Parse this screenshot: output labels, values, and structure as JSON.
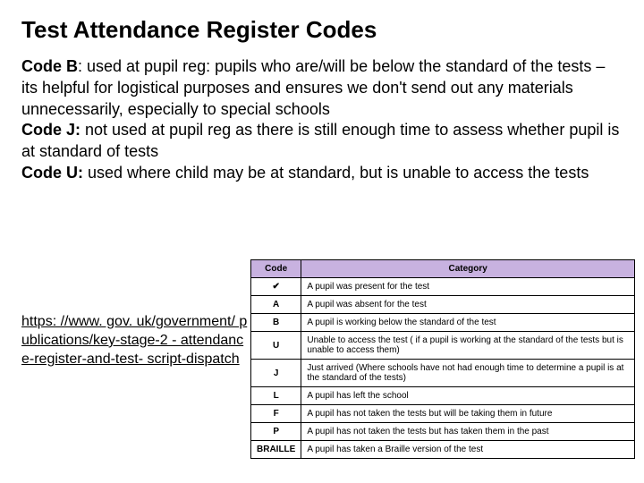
{
  "title": "Test Attendance Register Codes",
  "paragraphs": {
    "b_label": "Code B",
    "b_text": ": used at pupil reg: pupils who are/will be below the standard of the tests – its helpful for logistical purposes and ensures we don't send out any materials unnecessarily, especially to special schools",
    "j_label": " Code J:",
    "j_text": " not used at pupil reg as there is still enough time to assess whether pupil is at standard of tests",
    "u_label": " Code U:",
    "u_text": " used where child may be at standard, but is unable to access the tests"
  },
  "link_text": "https: //www. gov. uk/government/ publications/key-stage-2 - attendance-register-and-test- script-dispatch",
  "link_href": "https://www.gov.uk/government/publications/key-stage-2-attendance-register-and-test-script-dispatch",
  "table": {
    "header_bg": "#c8b2e0",
    "columns": [
      "Code",
      "Category"
    ],
    "rows": [
      {
        "code": "✔",
        "category": "A pupil was present for the test"
      },
      {
        "code": "A",
        "category": "A pupil was absent for the test"
      },
      {
        "code": "B",
        "category": "A pupil is working below the standard of the test"
      },
      {
        "code": "U",
        "category": "Unable to access the test ( if a pupil is working at the standard of the tests but is unable to access them)"
      },
      {
        "code": "J",
        "category": "Just arrived (Where schools have not had enough time to determine a pupil is at the standard of the tests)"
      },
      {
        "code": "L",
        "category": "A pupil has left the school"
      },
      {
        "code": "F",
        "category": "A pupil has not taken the tests but will be taking them in future"
      },
      {
        "code": "P",
        "category": "A pupil has not taken the tests but has taken them in the past"
      },
      {
        "code": "BRAILLE",
        "category": "A pupil has taken a Braille version of the test"
      }
    ]
  }
}
